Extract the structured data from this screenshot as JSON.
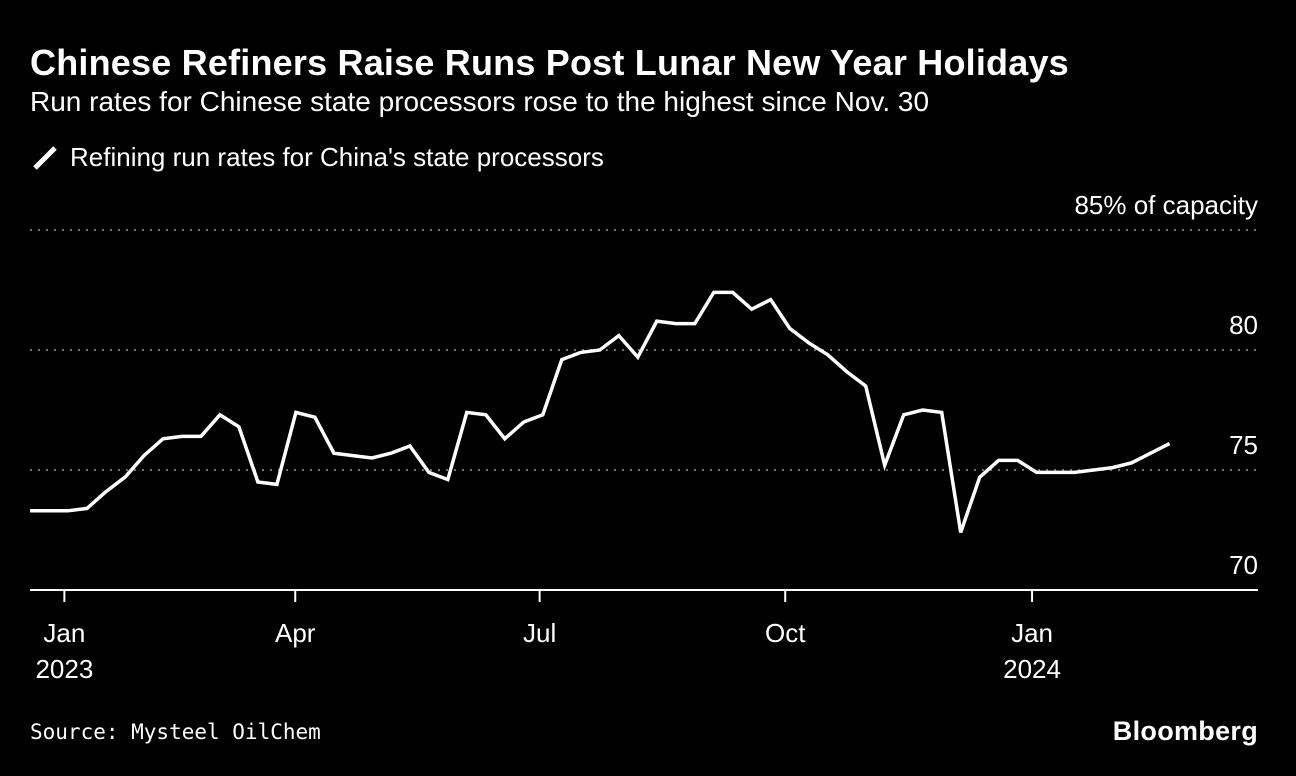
{
  "header": {
    "title": "Chinese Refiners Raise Runs Post Lunar New Year Holidays",
    "subtitle": "Run rates for Chinese state processors rose to the highest since Nov. 30"
  },
  "legend": {
    "label": "Refining run rates for China's state processors",
    "swatch_color": "#ffffff"
  },
  "footer": {
    "source": "Source: Mysteel OilChem",
    "brand": "Bloomberg"
  },
  "colors": {
    "background": "#000000",
    "text": "#ffffff",
    "gridline": "#707070",
    "axis": "#ffffff",
    "line": "#ffffff"
  },
  "chart_data": {
    "type": "line",
    "title": "Refining run rates for China's state processors",
    "unit": "% of capacity",
    "ylim": [
      70,
      85
    ],
    "grid": "horizontal dotted",
    "legend_position": "top-left",
    "y_ticks": [
      {
        "value": 85,
        "label": "85% of capacity"
      },
      {
        "value": 80,
        "label": "80"
      },
      {
        "value": 75,
        "label": "75"
      },
      {
        "value": 70,
        "label": "70"
      }
    ],
    "x_ticks": [
      {
        "label": "Jan",
        "sublabel": "2023",
        "t": 0.028
      },
      {
        "label": "Apr",
        "sublabel": "",
        "t": 0.216
      },
      {
        "label": "Jul",
        "sublabel": "",
        "t": 0.415
      },
      {
        "label": "Oct",
        "sublabel": "",
        "t": 0.615
      },
      {
        "label": "Jan",
        "sublabel": "2024",
        "t": 0.816
      }
    ],
    "series": [
      {
        "name": "Refining run rates for China's state processors",
        "color": "#ffffff",
        "cadence": "weekly",
        "t_start": 0.0,
        "t_end": 0.928,
        "values": [
          73.3,
          73.3,
          73.3,
          73.4,
          74.1,
          74.7,
          75.6,
          76.3,
          76.4,
          76.4,
          77.3,
          76.8,
          74.5,
          74.4,
          77.4,
          77.2,
          75.7,
          75.6,
          75.5,
          75.7,
          76.0,
          74.9,
          74.6,
          77.4,
          77.3,
          76.3,
          77.0,
          77.3,
          79.6,
          79.9,
          80.0,
          80.6,
          79.7,
          81.2,
          81.1,
          81.1,
          82.4,
          82.4,
          81.7,
          82.1,
          80.9,
          80.3,
          79.8,
          79.1,
          78.5,
          75.2,
          77.3,
          77.5,
          77.4,
          72.4,
          74.7,
          75.4,
          75.4,
          74.9,
          74.9,
          74.9,
          75.0,
          75.1,
          75.3,
          75.7,
          76.1
        ]
      }
    ]
  }
}
